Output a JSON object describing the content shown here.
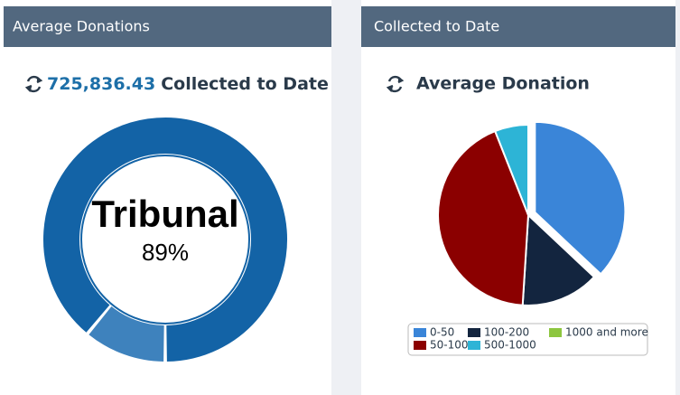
{
  "chart_data": [
    {
      "type": "donut",
      "header": "Average Donations",
      "total": "725,836.43",
      "title": "Collected to Date",
      "label": "Tribunal",
      "values": [
        89,
        11
      ],
      "value_labels": [
        "89%",
        null
      ],
      "colors": [
        "#1363a6",
        "#3e82bd"
      ]
    },
    {
      "type": "pie",
      "header": "Collected to Date",
      "title": "Average Donation",
      "categories": [
        "0-50",
        "50-100",
        "100-200",
        "500-1000",
        "1000 and more"
      ],
      "values": [
        37,
        43,
        14,
        6,
        0
      ],
      "colors": [
        "#3a85d8",
        "#8b0000",
        "#13253f",
        "#2db4d6",
        "#8dc63f"
      ],
      "legend": "bottom"
    }
  ]
}
